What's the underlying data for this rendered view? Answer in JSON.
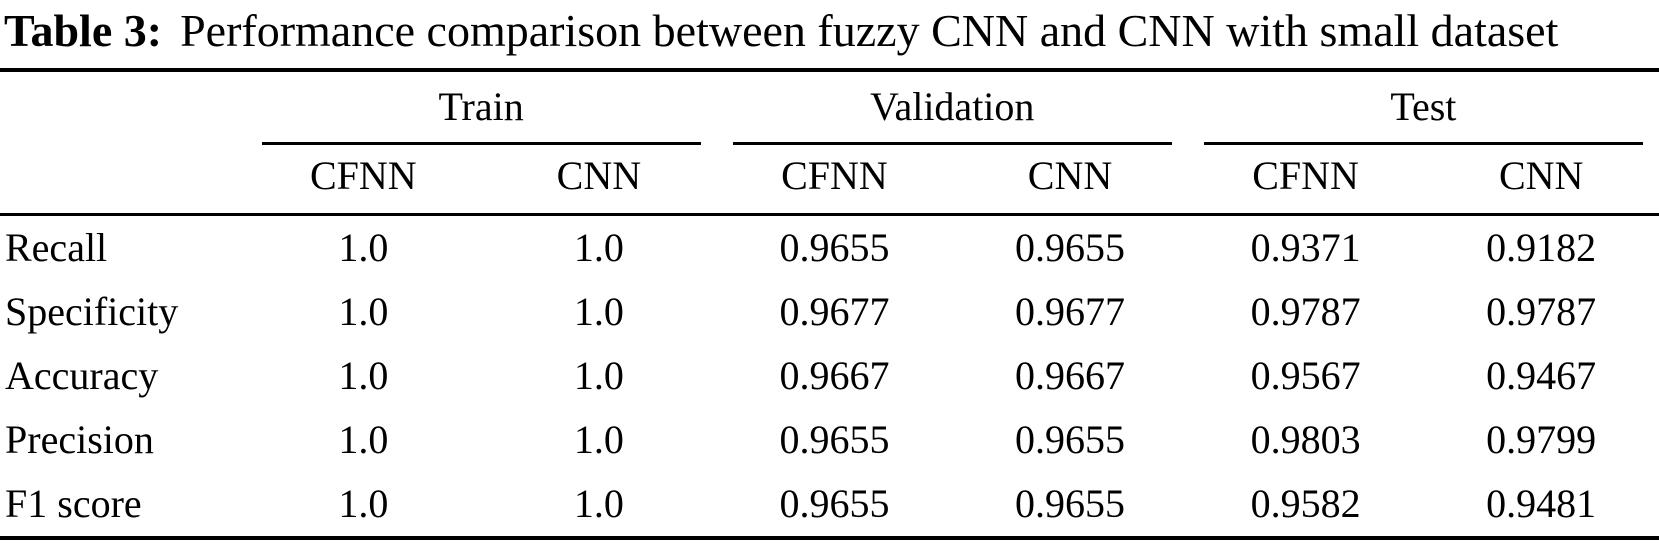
{
  "caption": {
    "label": "Table 3:",
    "text": "Performance comparison between fuzzy CNN and CNN with small dataset"
  },
  "table": {
    "groups": [
      {
        "label": "Train"
      },
      {
        "label": "Validation"
      },
      {
        "label": "Test"
      }
    ],
    "sub_headers": [
      "CFNN",
      "CNN",
      "CFNN",
      "CNN",
      "CFNN",
      "CNN"
    ],
    "rows": [
      {
        "label": "Recall",
        "values": [
          "1.0",
          "1.0",
          "0.9655",
          "0.9655",
          "0.9371",
          "0.9182"
        ]
      },
      {
        "label": "Specificity",
        "values": [
          "1.0",
          "1.0",
          "0.9677",
          "0.9677",
          "0.9787",
          "0.9787"
        ]
      },
      {
        "label": "Accuracy",
        "values": [
          "1.0",
          "1.0",
          "0.9667",
          "0.9667",
          "0.9567",
          "0.9467"
        ]
      },
      {
        "label": "Precision",
        "values": [
          "1.0",
          "1.0",
          "0.9655",
          "0.9655",
          "0.9803",
          "0.9799"
        ]
      },
      {
        "label": "F1 score",
        "values": [
          "1.0",
          "1.0",
          "0.9655",
          "0.9655",
          "0.9582",
          "0.9481"
        ]
      }
    ],
    "colors": {
      "text": "#000000",
      "background": "#ffffff",
      "rule": "#000000"
    }
  }
}
